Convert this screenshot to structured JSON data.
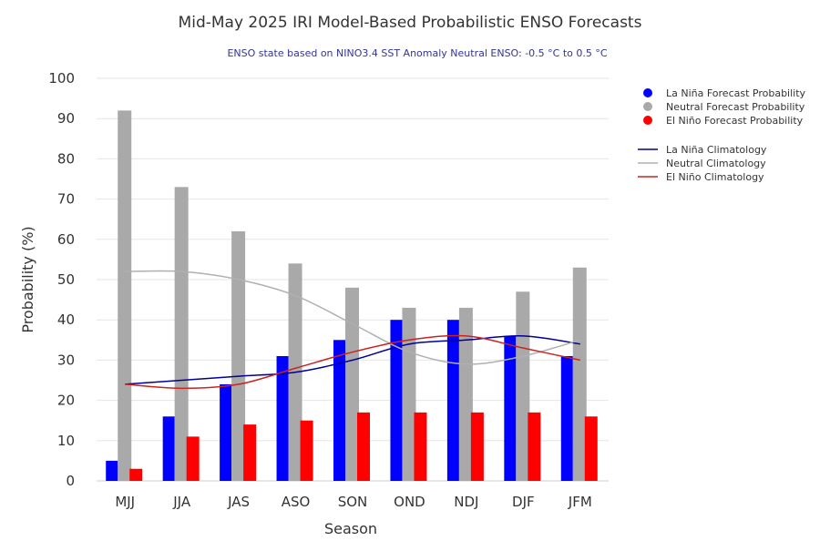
{
  "chart_data": {
    "type": "bar",
    "title": "Mid-May 2025 IRI Model-Based Probabilistic ENSO Forecasts",
    "subtitle": "ENSO state based on NINO3.4 SST Anomaly Neutral ENSO: -0.5 °C to 0.5 °C",
    "xlabel": "Season",
    "ylabel": "Probability (%)",
    "ylim": [
      0,
      100
    ],
    "yticks": [
      0,
      10,
      20,
      30,
      40,
      50,
      60,
      70,
      80,
      90,
      100
    ],
    "grid": true,
    "legend_position": "right",
    "categories": [
      "MJJ",
      "JJA",
      "JAS",
      "ASO",
      "SON",
      "OND",
      "NDJ",
      "DJF",
      "JFM"
    ],
    "series": [
      {
        "name": "La Niña Forecast Probability",
        "kind": "bar",
        "color": "#0000ff",
        "values": [
          5,
          16,
          24,
          31,
          35,
          40,
          40,
          36,
          31
        ]
      },
      {
        "name": "Neutral Forecast Probability",
        "kind": "bar",
        "color": "#a9a9a9",
        "values": [
          92,
          73,
          62,
          54,
          48,
          43,
          43,
          47,
          53
        ]
      },
      {
        "name": "El Niño Forecast Probability",
        "kind": "bar",
        "color": "#ff0000",
        "values": [
          3,
          11,
          14,
          15,
          17,
          17,
          17,
          17,
          16
        ]
      },
      {
        "name": "La Niña Climatology",
        "kind": "line",
        "color": "#000099",
        "values": [
          24,
          25,
          26,
          27,
          30,
          34,
          35,
          36,
          34
        ]
      },
      {
        "name": "Neutral Climatology",
        "kind": "line",
        "color": "#b0b0b0",
        "values": [
          52,
          52,
          50,
          46,
          39,
          32,
          29,
          31,
          35
        ]
      },
      {
        "name": "El Niño Climatology",
        "kind": "line",
        "color": "#cc2222",
        "values": [
          24,
          23,
          24,
          28,
          32,
          35,
          36,
          33,
          30
        ]
      }
    ]
  }
}
